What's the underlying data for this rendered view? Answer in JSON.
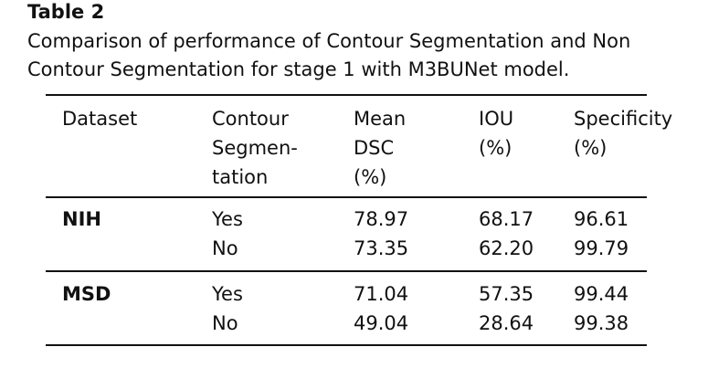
{
  "caption": {
    "label": "Table 2",
    "lines": [
      "Comparison of performance of Contour Segmentation and Non",
      "Contour Segmentation for stage 1 with M3BUNet model."
    ]
  },
  "table": {
    "header": [
      [
        "Dataset"
      ],
      [
        "Contour",
        "Segmen-",
        "tation"
      ],
      [
        "Mean",
        "DSC",
        "(%)"
      ],
      [
        "IOU",
        "(%)"
      ],
      [
        "Specificity",
        "(%)"
      ]
    ],
    "groups": [
      {
        "dataset": "NIH",
        "rows": [
          [
            "Yes",
            "78.97",
            "68.17",
            "96.61"
          ],
          [
            "No",
            "73.35",
            "62.20",
            "99.79"
          ]
        ]
      },
      {
        "dataset": "MSD",
        "rows": [
          [
            "Yes",
            "71.04",
            "57.35",
            "99.44"
          ],
          [
            "No",
            "49.04",
            "28.64",
            "99.38"
          ]
        ]
      }
    ]
  }
}
